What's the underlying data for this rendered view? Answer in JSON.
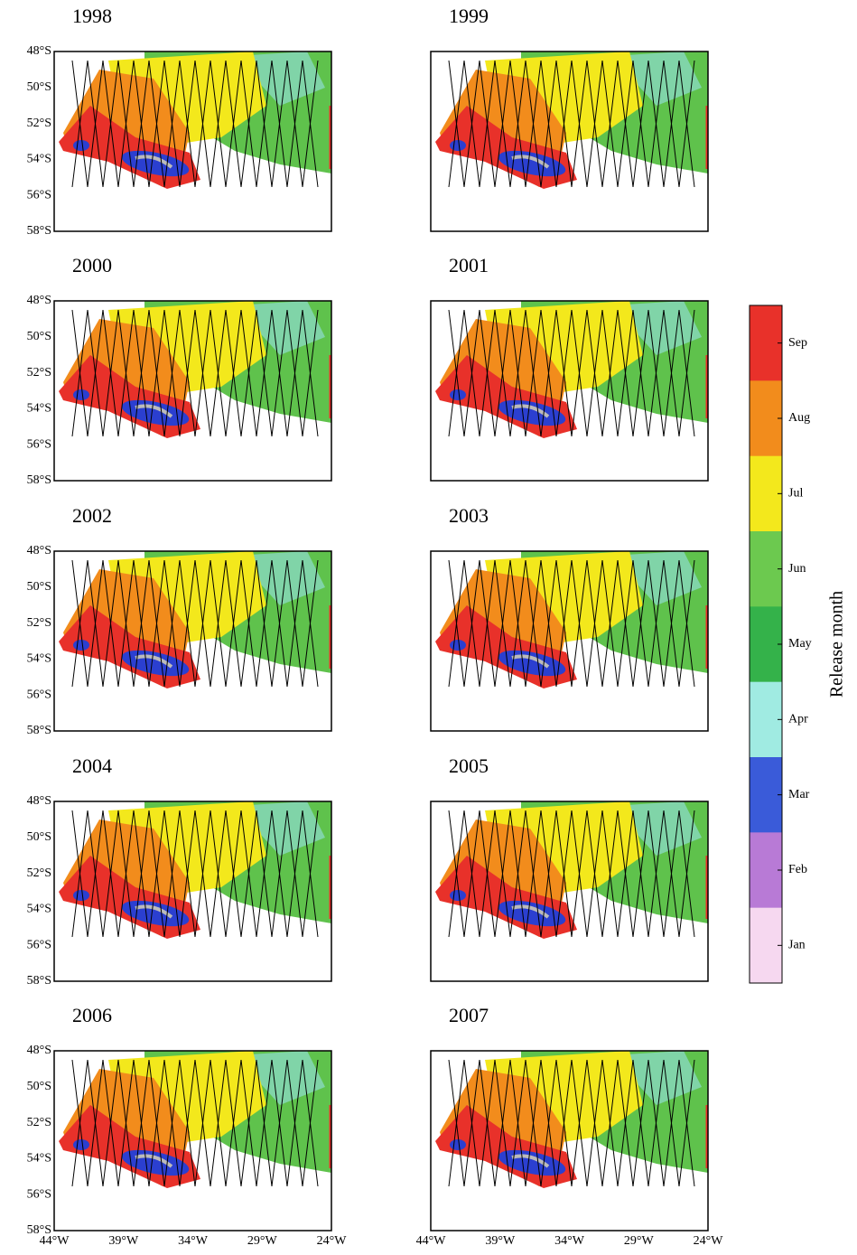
{
  "panels": [
    {
      "title": "1998"
    },
    {
      "title": "1999"
    },
    {
      "title": "2000"
    },
    {
      "title": "2001"
    },
    {
      "title": "2002"
    },
    {
      "title": "2003"
    },
    {
      "title": "2004"
    },
    {
      "title": "2005"
    },
    {
      "title": "2006"
    },
    {
      "title": "2007"
    }
  ],
  "axes": {
    "y_labels": [
      "48°S",
      "50°S",
      "52°S",
      "54°S",
      "56°S",
      "58°S"
    ],
    "x_labels": [
      "44°W",
      "39°W",
      "34°W",
      "29°W",
      "24°W"
    ]
  },
  "colorbar": {
    "label": "Release month",
    "ticks": [
      {
        "label": "Sep",
        "color": "#e8312a"
      },
      {
        "label": "Aug",
        "color": "#f28c1c"
      },
      {
        "label": "Jul",
        "color": "#f3e81c"
      },
      {
        "label": "Jun",
        "color": "#6cc94f"
      },
      {
        "label": "May",
        "color": "#34b24a"
      },
      {
        "label": "Apr",
        "color": "#a0ebe2"
      },
      {
        "label": "Mar",
        "color": "#3a5bd9"
      },
      {
        "label": "Feb",
        "color": "#b87ad6"
      },
      {
        "label": "Jan",
        "color": "#f6d8f0"
      }
    ]
  }
}
